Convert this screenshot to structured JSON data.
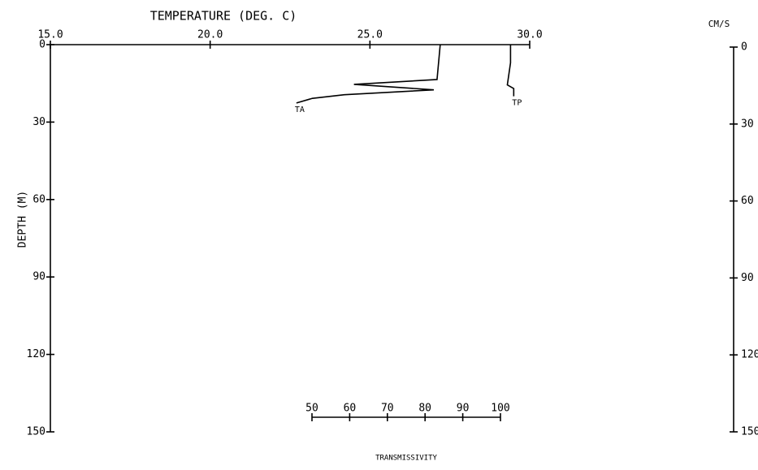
{
  "chart_data": {
    "type": "line",
    "title": "TEMPERATURE (DEG. C)",
    "y_label": "DEPTH (M)",
    "y2_label": "CM/S",
    "t_label": "TRANSMISSIVITY",
    "xlim": [
      15,
      30
    ],
    "xticks": [
      {
        "value": 15,
        "label": "15.0"
      },
      {
        "value": 20,
        "label": "20.0"
      },
      {
        "value": 25,
        "label": "25.0"
      },
      {
        "value": 30,
        "label": "30.0"
      }
    ],
    "ylim": [
      0,
      150
    ],
    "yticks": [
      0,
      30,
      60,
      90,
      120,
      150
    ],
    "y2lim": [
      0,
      150
    ],
    "y2ticks": [
      0,
      30,
      60,
      90,
      120,
      150
    ],
    "tlim": [
      50,
      100
    ],
    "tticks": [
      50,
      60,
      70,
      80,
      90,
      100
    ],
    "color": "#000000",
    "series": [
      {
        "name": "TA",
        "x": [
          27.2,
          27.1,
          24.5,
          27.0,
          24.2,
          23.2,
          22.7
        ],
        "y": [
          0,
          13.5,
          15.4,
          17.5,
          19.4,
          20.8,
          22.6
        ]
      },
      {
        "name": "TP",
        "x": [
          29.4,
          29.4,
          29.3,
          29.5,
          29.5
        ],
        "y": [
          0,
          7,
          15.6,
          17,
          20
        ]
      }
    ]
  }
}
